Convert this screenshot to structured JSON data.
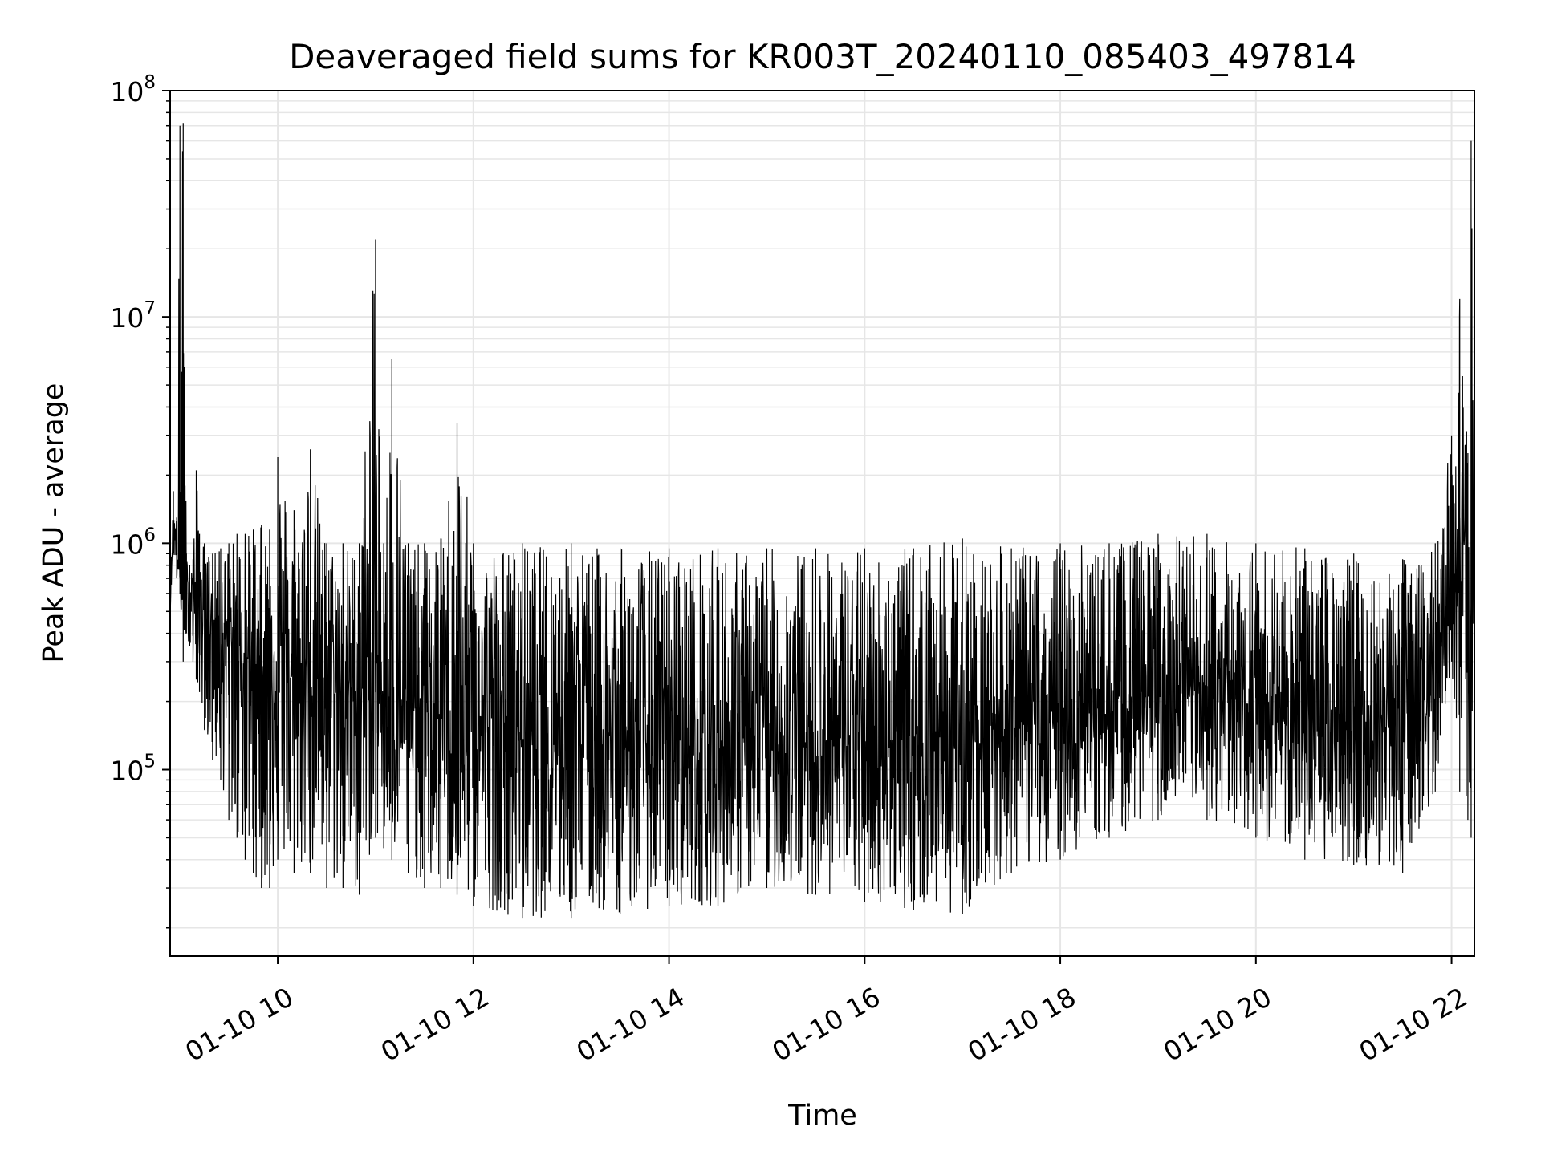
{
  "chart_data": {
    "type": "line",
    "title": "Deaveraged field sums for KR003T_20240110_085403_497814",
    "xlabel": "Time",
    "ylabel": "Peak ADU - average",
    "yscale": "log",
    "ylim": [
      15000,
      100000000
    ],
    "xlim": [
      "01-10 08:54",
      "01-10 22:14"
    ],
    "grid": true,
    "line_color": "#000000",
    "grid_color": "#e6e6e6",
    "x_ticks": [
      {
        "label": "01-10 10",
        "time": "01-10 10:00"
      },
      {
        "label": "01-10 12",
        "time": "01-10 12:00"
      },
      {
        "label": "01-10 14",
        "time": "01-10 14:00"
      },
      {
        "label": "01-10 16",
        "time": "01-10 16:00"
      },
      {
        "label": "01-10 18",
        "time": "01-10 18:00"
      },
      {
        "label": "01-10 20",
        "time": "01-10 20:00"
      },
      {
        "label": "01-10 22",
        "time": "01-10 22:00"
      }
    ],
    "y_ticks": [
      {
        "base": "10",
        "exp": "5",
        "value": 100000
      },
      {
        "base": "10",
        "exp": "6",
        "value": 1000000
      },
      {
        "base": "10",
        "exp": "7",
        "value": 10000000
      },
      {
        "base": "10",
        "exp": "8",
        "value": 100000000
      }
    ],
    "series": [
      {
        "x": [
          "01-10 08:54",
          "01-10 08:56",
          "01-10 08:58",
          "01-10 09:00",
          "01-10 09:02",
          "01-10 09:04",
          "01-10 09:06",
          "01-10 09:08",
          "01-10 09:10",
          "01-10 09:12",
          "01-10 09:15",
          "01-10 09:20",
          "01-10 09:25",
          "01-10 09:30",
          "01-10 09:35",
          "01-10 09:40",
          "01-10 09:45",
          "01-10 09:50",
          "01-10 09:55",
          "01-10 10:00",
          "01-10 10:10",
          "01-10 10:20",
          "01-10 10:30",
          "01-10 10:40",
          "01-10 10:50",
          "01-10 11:00",
          "01-10 11:05",
          "01-10 11:10",
          "01-10 11:20",
          "01-10 11:30",
          "01-10 11:40",
          "01-10 11:50",
          "01-10 12:00",
          "01-10 12:30",
          "01-10 13:00",
          "01-10 13:30",
          "01-10 14:00",
          "01-10 14:30",
          "01-10 15:00",
          "01-10 15:30",
          "01-10 16:00",
          "01-10 16:30",
          "01-10 17:00",
          "01-10 17:30",
          "01-10 18:00",
          "01-10 18:30",
          "01-10 19:00",
          "01-10 19:30",
          "01-10 20:00",
          "01-10 20:30",
          "01-10 21:00",
          "01-10 21:30",
          "01-10 21:40",
          "01-10 21:50",
          "01-10 22:00",
          "01-10 22:05",
          "01-10 22:10",
          "01-10 22:12",
          "01-10 22:14"
        ],
        "y_high": [
          700000,
          1700000,
          1300000,
          70000000,
          72000000,
          900000,
          800000,
          850000,
          2100000,
          1100000,
          1000000,
          900000,
          950000,
          1000000,
          1100000,
          1100000,
          1150000,
          1200000,
          1150000,
          2400000,
          1400000,
          2600000,
          1000000,
          1000000,
          1000000,
          22000000,
          1000000,
          6500000,
          1000000,
          1000000,
          1050000,
          3400000,
          1000000,
          1000000,
          1000000,
          950000,
          950000,
          950000,
          950000,
          950000,
          950000,
          950000,
          1050000,
          950000,
          1000000,
          1000000,
          1100000,
          1100000,
          1000000,
          950000,
          900000,
          850000,
          800000,
          1000000,
          3000000,
          12000000,
          2500000,
          60000000,
          60000000
        ],
        "y_low": [
          500000,
          900000,
          700000,
          600000,
          300000,
          400000,
          350000,
          300000,
          250000,
          220000,
          150000,
          110000,
          90000,
          60000,
          50000,
          40000,
          35000,
          30000,
          30000,
          40000,
          35000,
          35000,
          30000,
          30000,
          28000,
          50000,
          45000,
          40000,
          35000,
          30000,
          30000,
          28000,
          25000,
          22000,
          22000,
          23000,
          25000,
          25000,
          30000,
          28000,
          26000,
          24000,
          23000,
          35000,
          40000,
          50000,
          60000,
          60000,
          50000,
          40000,
          38000,
          35000,
          55000,
          80000,
          300000,
          80000,
          60000,
          50000,
          300000
        ],
        "y_mid": [
          600000,
          1200000,
          900000,
          700000,
          600000,
          600000,
          650000,
          600000,
          650000,
          600000,
          500000,
          450000,
          400000,
          380000,
          350000,
          320000,
          300000,
          290000,
          280000,
          300000,
          250000,
          250000,
          240000,
          230000,
          220000,
          240000,
          220000,
          210000,
          200000,
          180000,
          170000,
          160000,
          160000,
          150000,
          140000,
          130000,
          130000,
          130000,
          120000,
          130000,
          130000,
          140000,
          130000,
          160000,
          170000,
          180000,
          200000,
          210000,
          200000,
          170000,
          160000,
          150000,
          180000,
          250000,
          800000,
          700000,
          500000,
          400000,
          800000
        ]
      }
    ]
  }
}
